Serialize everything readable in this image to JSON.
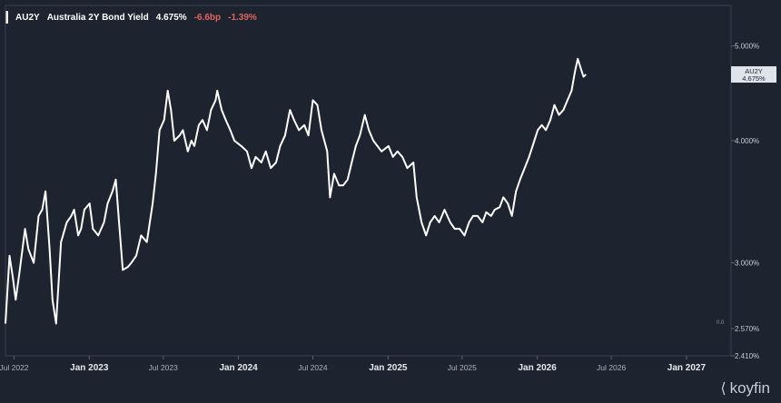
{
  "header": {
    "ticker": "AU2Y",
    "name": "Australia 2Y Bond Yield",
    "price": "4.675%",
    "change_bp": "-6.6bp",
    "change_pct": "-1.39%"
  },
  "brand": {
    "name": "koyfin",
    "logo_icon": "koyfin-k-icon"
  },
  "colors": {
    "background": "#1e2330",
    "line": "#ffffff",
    "negative": "#e0645f",
    "axis_text": "#c9ccd3",
    "last_tag": "#dfe3ea"
  },
  "chart_data": {
    "type": "line",
    "y_scale": "log",
    "x_ticks": [
      "Jul 2022",
      "Jan 2023",
      "Jul 2023",
      "Jan 2024",
      "Jul 2024",
      "Jan 2025",
      "Jul 2025",
      "Jan 2026",
      "Jul 2026",
      "Jan 2027"
    ],
    "x_bold_ticks": [
      "Jan 2023",
      "Jan 2024",
      "Jan 2025",
      "Jan 2026",
      "Jan 2027"
    ],
    "y_ticks": [
      "5.000%",
      "4.000%",
      "3.000%",
      "2.570%",
      "2.410%"
    ],
    "y_tick_values": [
      5.0,
      4.0,
      3.0,
      2.57,
      2.41
    ],
    "xlim": [
      "2022-06-10",
      "2027-04-20"
    ],
    "ylim": [
      2.41,
      5.5
    ],
    "minor_label": "0.0",
    "last_value_label": {
      "ticker": "AU2Y",
      "value": "4.675%"
    },
    "series": [
      {
        "values": [
          [
            "2022-06-10",
            2.6
          ],
          [
            "2022-06-20",
            3.05
          ],
          [
            "2022-06-28",
            2.9
          ],
          [
            "2022-07-05",
            2.75
          ],
          [
            "2022-07-15",
            2.95
          ],
          [
            "2022-07-28",
            3.25
          ],
          [
            "2022-08-05",
            3.1
          ],
          [
            "2022-08-18",
            3.0
          ],
          [
            "2022-08-30",
            3.35
          ],
          [
            "2022-09-08",
            3.4
          ],
          [
            "2022-09-16",
            3.55
          ],
          [
            "2022-09-26",
            3.1
          ],
          [
            "2022-10-03",
            2.75
          ],
          [
            "2022-10-12",
            2.6
          ],
          [
            "2022-10-24",
            3.15
          ],
          [
            "2022-11-07",
            3.3
          ],
          [
            "2022-11-18",
            3.35
          ],
          [
            "2022-11-25",
            3.4
          ],
          [
            "2022-12-05",
            3.2
          ],
          [
            "2022-12-12",
            3.25
          ],
          [
            "2022-12-20",
            3.4
          ],
          [
            "2023-01-02",
            3.45
          ],
          [
            "2023-01-10",
            3.25
          ],
          [
            "2023-01-23",
            3.2
          ],
          [
            "2023-02-06",
            3.3
          ],
          [
            "2023-02-15",
            3.45
          ],
          [
            "2023-02-27",
            3.55
          ],
          [
            "2023-03-07",
            3.65
          ],
          [
            "2023-03-15",
            3.3
          ],
          [
            "2023-03-24",
            2.95
          ],
          [
            "2023-04-05",
            2.97
          ],
          [
            "2023-04-14",
            3.0
          ],
          [
            "2023-04-26",
            3.05
          ],
          [
            "2023-05-08",
            3.2
          ],
          [
            "2023-05-22",
            3.15
          ],
          [
            "2023-06-05",
            3.45
          ],
          [
            "2023-06-13",
            3.7
          ],
          [
            "2023-06-22",
            4.1
          ],
          [
            "2023-07-03",
            4.2
          ],
          [
            "2023-07-12",
            4.5
          ],
          [
            "2023-07-20",
            4.3
          ],
          [
            "2023-07-28",
            4.0
          ],
          [
            "2023-08-10",
            4.05
          ],
          [
            "2023-08-18",
            4.1
          ],
          [
            "2023-08-30",
            3.9
          ],
          [
            "2023-09-08",
            4.0
          ],
          [
            "2023-09-15",
            3.95
          ],
          [
            "2023-09-26",
            4.15
          ],
          [
            "2023-10-05",
            4.2
          ],
          [
            "2023-10-16",
            4.1
          ],
          [
            "2023-10-26",
            4.3
          ],
          [
            "2023-11-06",
            4.4
          ],
          [
            "2023-11-10",
            4.5
          ],
          [
            "2023-11-21",
            4.3
          ],
          [
            "2023-12-01",
            4.2
          ],
          [
            "2023-12-12",
            4.1
          ],
          [
            "2023-12-22",
            4.0
          ],
          [
            "2024-01-08",
            3.95
          ],
          [
            "2024-01-22",
            3.9
          ],
          [
            "2024-02-02",
            3.75
          ],
          [
            "2024-02-12",
            3.85
          ],
          [
            "2024-02-26",
            3.8
          ],
          [
            "2024-03-08",
            3.9
          ],
          [
            "2024-03-20",
            3.75
          ],
          [
            "2024-04-02",
            3.8
          ],
          [
            "2024-04-12",
            3.95
          ],
          [
            "2024-04-24",
            4.05
          ],
          [
            "2024-05-06",
            4.3
          ],
          [
            "2024-05-16",
            4.2
          ],
          [
            "2024-05-28",
            4.1
          ],
          [
            "2024-06-10",
            4.15
          ],
          [
            "2024-06-20",
            4.05
          ],
          [
            "2024-07-01",
            4.4
          ],
          [
            "2024-07-12",
            4.35
          ],
          [
            "2024-07-22",
            4.1
          ],
          [
            "2024-08-05",
            3.9
          ],
          [
            "2024-08-12",
            3.5
          ],
          [
            "2024-08-22",
            3.7
          ],
          [
            "2024-09-03",
            3.6
          ],
          [
            "2024-09-13",
            3.6
          ],
          [
            "2024-09-24",
            3.65
          ],
          [
            "2024-10-04",
            3.8
          ],
          [
            "2024-10-14",
            3.95
          ],
          [
            "2024-10-24",
            4.05
          ],
          [
            "2024-11-05",
            4.25
          ],
          [
            "2024-11-15",
            4.1
          ],
          [
            "2024-11-26",
            4.0
          ],
          [
            "2024-12-06",
            3.95
          ],
          [
            "2024-12-16",
            3.9
          ],
          [
            "2025-01-02",
            3.95
          ],
          [
            "2025-01-13",
            3.85
          ],
          [
            "2025-01-24",
            3.9
          ],
          [
            "2025-02-05",
            3.85
          ],
          [
            "2025-02-17",
            3.75
          ],
          [
            "2025-03-04",
            3.8
          ],
          [
            "2025-03-12",
            3.5
          ],
          [
            "2025-03-24",
            3.3
          ],
          [
            "2025-04-04",
            3.2
          ],
          [
            "2025-04-14",
            3.3
          ],
          [
            "2025-04-25",
            3.35
          ],
          [
            "2025-05-06",
            3.3
          ],
          [
            "2025-05-19",
            3.4
          ],
          [
            "2025-06-02",
            3.3
          ],
          [
            "2025-06-13",
            3.25
          ],
          [
            "2025-06-25",
            3.25
          ],
          [
            "2025-07-07",
            3.2
          ],
          [
            "2025-07-18",
            3.3
          ],
          [
            "2025-07-28",
            3.35
          ],
          [
            "2025-08-08",
            3.35
          ],
          [
            "2025-08-20",
            3.3
          ],
          [
            "2025-08-29",
            3.38
          ],
          [
            "2025-09-10",
            3.35
          ],
          [
            "2025-09-19",
            3.4
          ],
          [
            "2025-10-01",
            3.42
          ],
          [
            "2025-10-10",
            3.5
          ],
          [
            "2025-10-21",
            3.45
          ],
          [
            "2025-10-31",
            3.35
          ],
          [
            "2025-11-10",
            3.55
          ],
          [
            "2025-11-20",
            3.65
          ],
          [
            "2025-12-01",
            3.75
          ],
          [
            "2025-12-12",
            3.85
          ],
          [
            "2026-01-02",
            4.1
          ],
          [
            "2026-01-12",
            4.15
          ],
          [
            "2026-01-22",
            4.1
          ],
          [
            "2026-02-02",
            4.2
          ],
          [
            "2026-02-12",
            4.35
          ],
          [
            "2026-02-23",
            4.25
          ],
          [
            "2026-03-06",
            4.3
          ],
          [
            "2026-03-16",
            4.4
          ],
          [
            "2026-03-26",
            4.5
          ],
          [
            "2026-04-03",
            4.7
          ],
          [
            "2026-04-10",
            4.85
          ],
          [
            "2026-04-17",
            4.75
          ],
          [
            "2026-04-24",
            4.65
          ],
          [
            "2026-04-30",
            4.675
          ]
        ]
      }
    ]
  }
}
